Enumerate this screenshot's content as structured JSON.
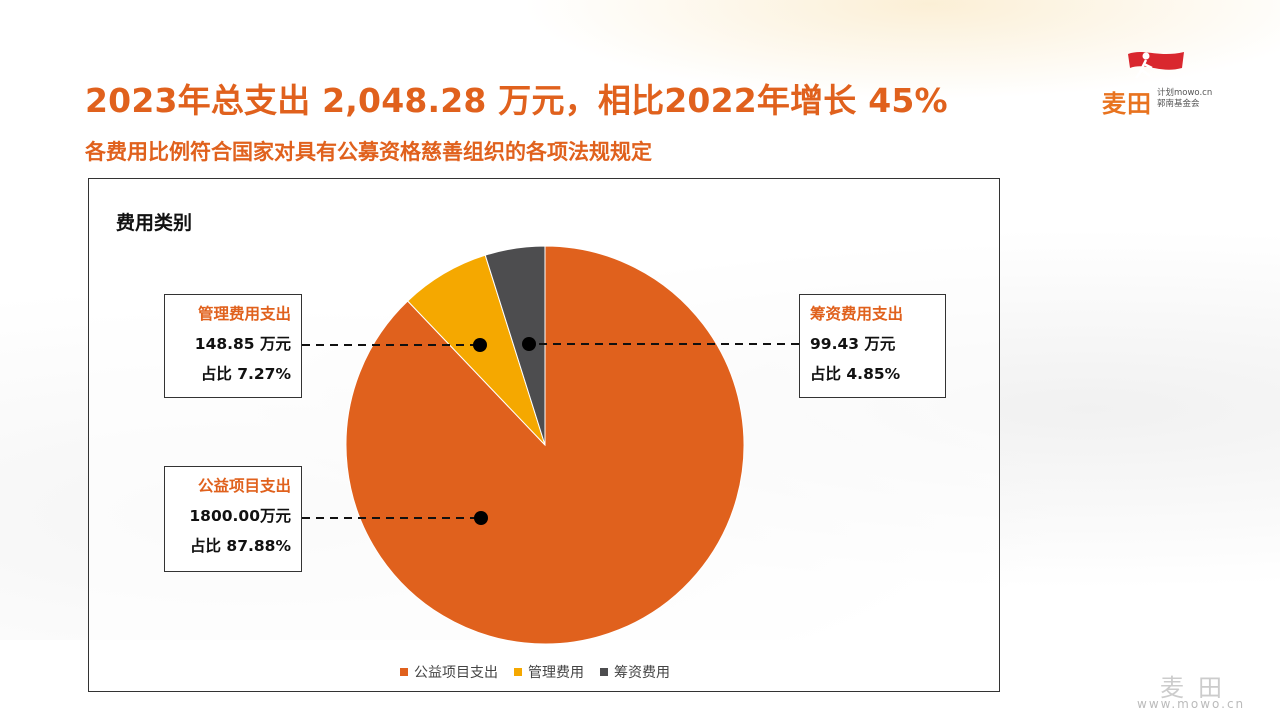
{
  "headline": "2023年总支出 2,048.28 万元，相比2022年增长 45%",
  "subheadline": "各费用比例符合国家对具有公募资格慈善组织的各项法规规定",
  "logo": {
    "main": "麦田",
    "line1": "计划mowo.cn",
    "line2": "郭南基金会"
  },
  "watermark": {
    "main": "麦田",
    "url": "www.mowo.cn"
  },
  "chart_data": {
    "type": "pie",
    "title": "费用类别",
    "slices": [
      {
        "name": "公益项目支出",
        "legend": "公益项目支出",
        "value": 1800.0,
        "value_label": "1800.00万元",
        "percent_label": "占比 87.88%",
        "color": "#e0611d"
      },
      {
        "name": "管理费用支出",
        "legend": "管理费用",
        "value": 148.85,
        "value_label": "148.85 万元",
        "percent_label": "占比 7.27%",
        "color": "#f5a800"
      },
      {
        "name": "筹资费用支出",
        "legend": "筹资费用",
        "value": 99.43,
        "value_label": "99.43 万元",
        "percent_label": "占比 4.85%",
        "color": "#4d4d4f"
      }
    ],
    "legend_position": "bottom"
  }
}
